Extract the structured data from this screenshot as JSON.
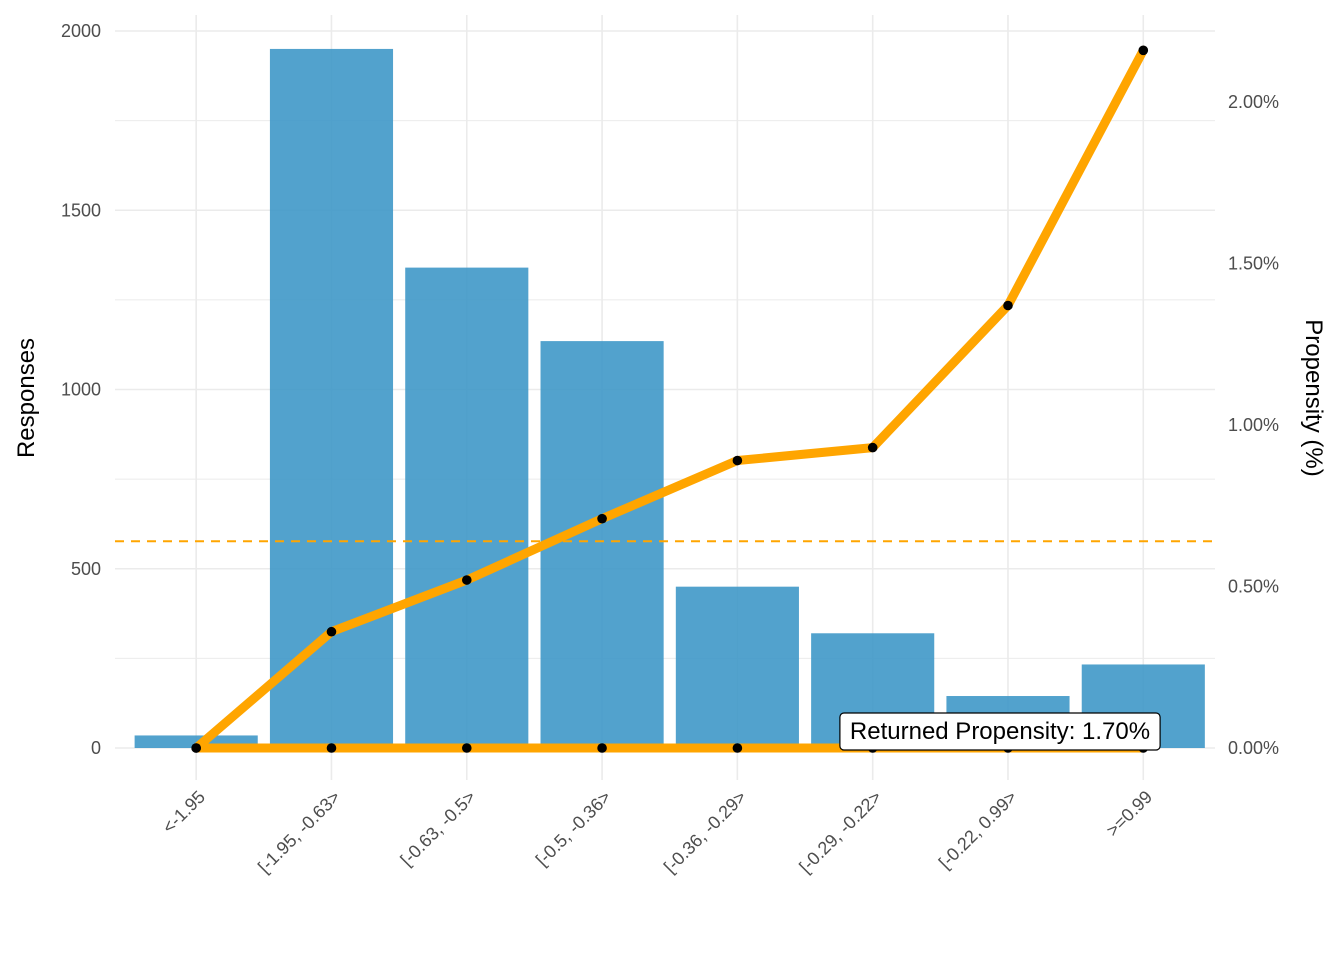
{
  "chart_data": {
    "type": "bar",
    "categories": [
      "<-1.95",
      "[-1.95, -0.63>",
      "[-0.63, -0.5>",
      "[-0.5, -0.36>",
      "[-0.36, -0.29>",
      "[-0.29, -0.22>",
      "[-0.22, 0.99>",
      ">=0.99"
    ],
    "series": [
      {
        "type": "bar",
        "axis": "left",
        "values": [
          35,
          1950,
          1340,
          1135,
          450,
          320,
          145,
          233
        ],
        "color": "#3f98c8"
      },
      {
        "type": "line",
        "axis": "right",
        "values": [
          0.0,
          0.36,
          0.52,
          0.71,
          0.89,
          0.93,
          1.37,
          2.16
        ],
        "color": "#ffa500"
      },
      {
        "type": "line",
        "axis": "right",
        "values": [
          0,
          0,
          0,
          0,
          0,
          0,
          0,
          0
        ],
        "color": "#ffa500"
      }
    ],
    "reference_line": {
      "axis": "right",
      "value": 0.64,
      "style": "dashed",
      "color": "#ffa500"
    },
    "annotation": "Returned Propensity: 1.70%",
    "ylabel": "Responses",
    "ylabel_right": "Propensity (%)",
    "ylim": [
      0,
      2000
    ],
    "ylim_right": [
      0,
      2.22
    ],
    "yticks": [
      "0",
      "500",
      "1000",
      "1500",
      "2000"
    ],
    "yticks_right": [
      "0.00%",
      "0.50%",
      "1.00%",
      "1.50%",
      "2.00%"
    ],
    "grid": true,
    "legend": "none"
  }
}
